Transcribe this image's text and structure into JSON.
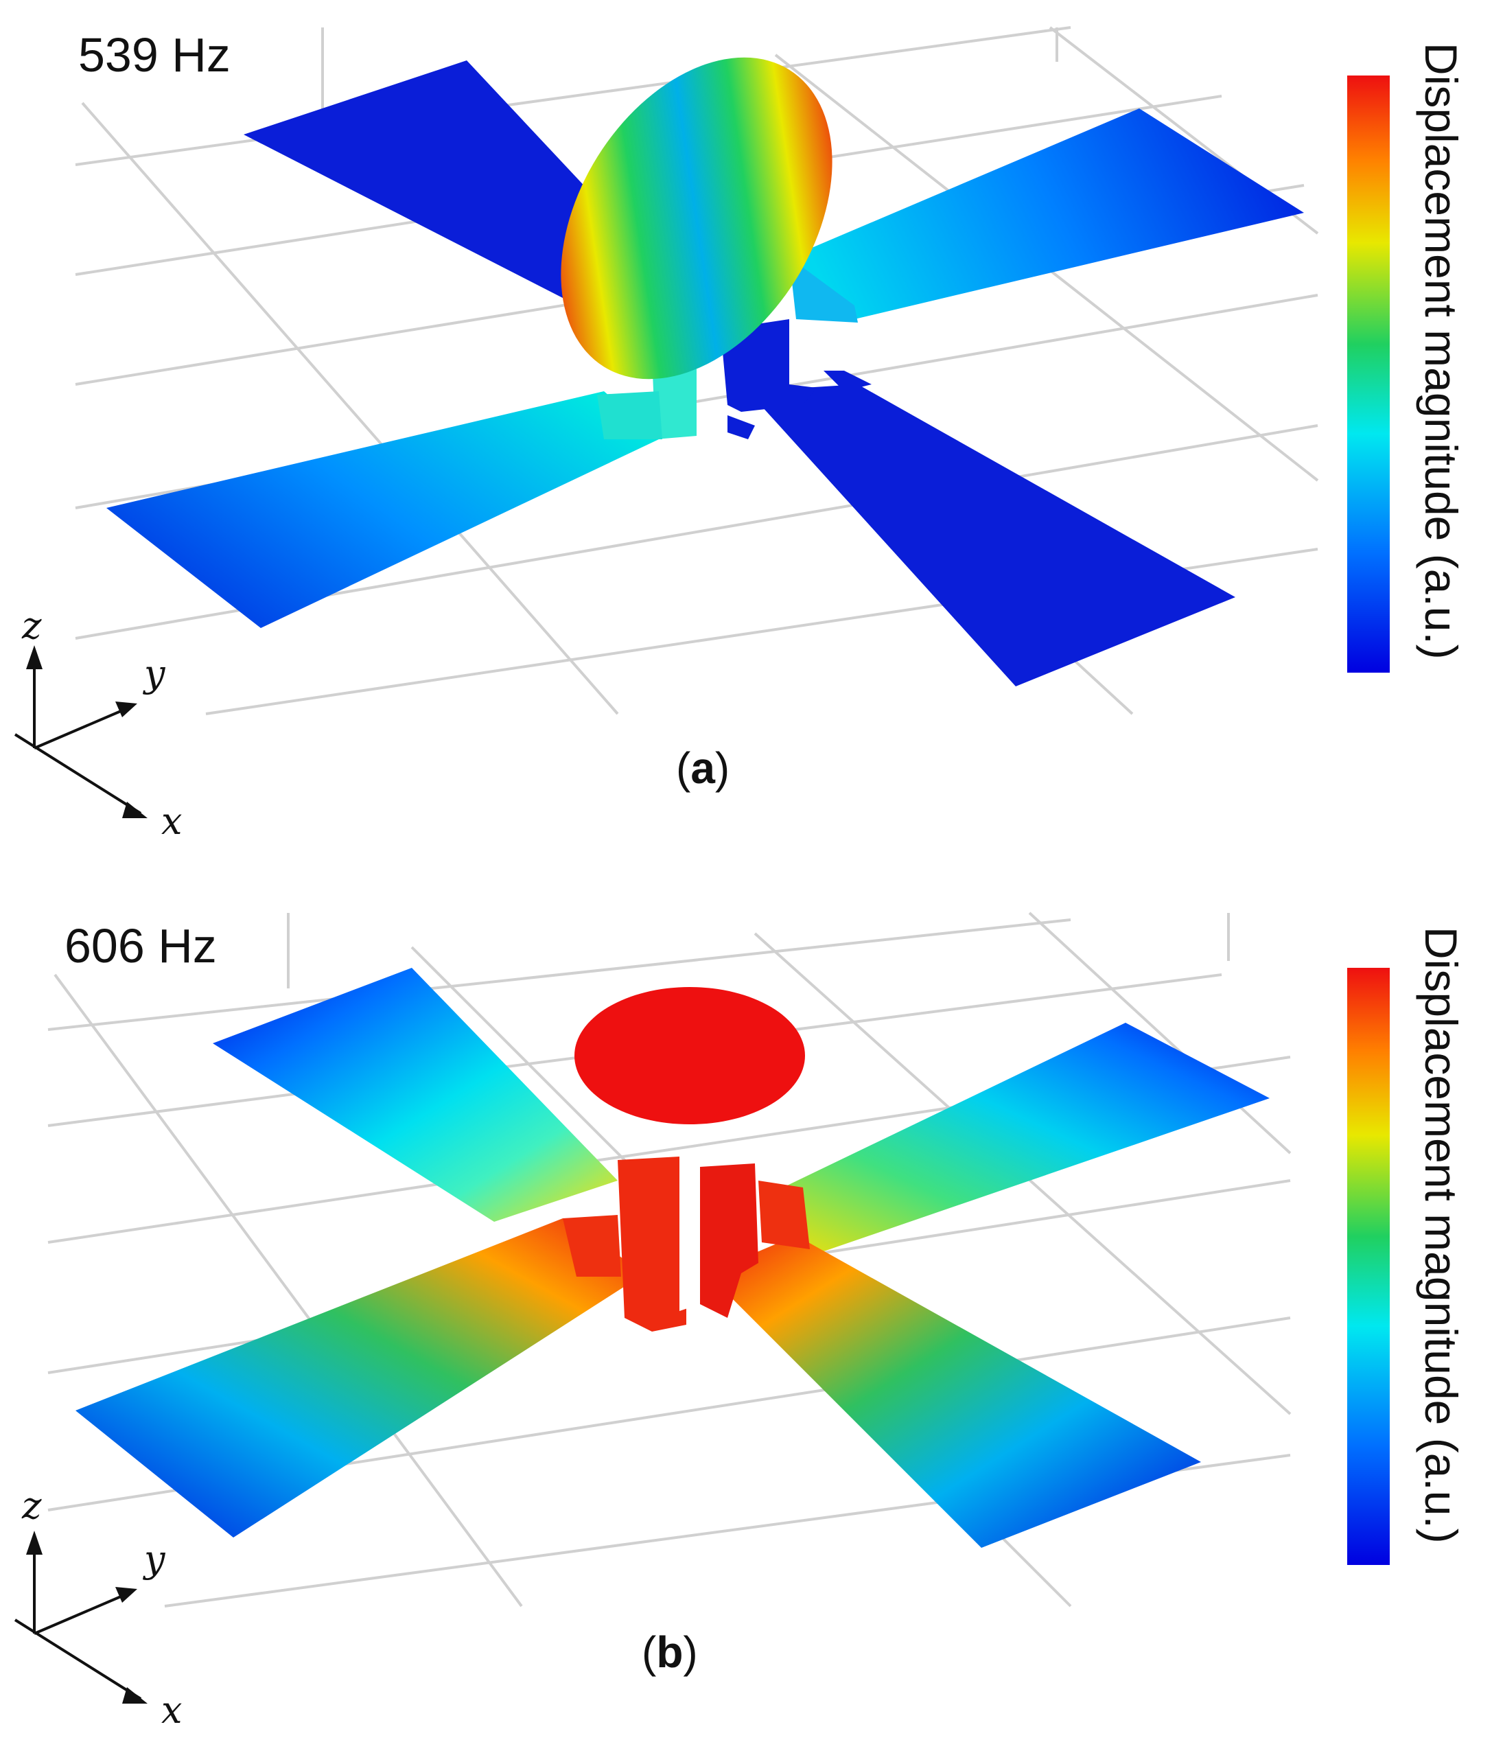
{
  "panels": [
    {
      "id": "a",
      "frequency_label": "539 Hz",
      "tag_letter": "a",
      "colorbar_title": "Displacement magnitude (a.u.)",
      "axes": {
        "x": "x",
        "y": "y",
        "z": "z"
      }
    },
    {
      "id": "b",
      "frequency_label": "606 Hz",
      "tag_letter": "b",
      "colorbar_title": "Displacement magnitude (a.u.)",
      "axes": {
        "x": "x",
        "y": "y",
        "z": "z"
      }
    }
  ],
  "colormap": [
    "#0000e0",
    "#0070ff",
    "#00e8f0",
    "#20d060",
    "#e8e800",
    "#ff8000",
    "#ee1010"
  ]
}
